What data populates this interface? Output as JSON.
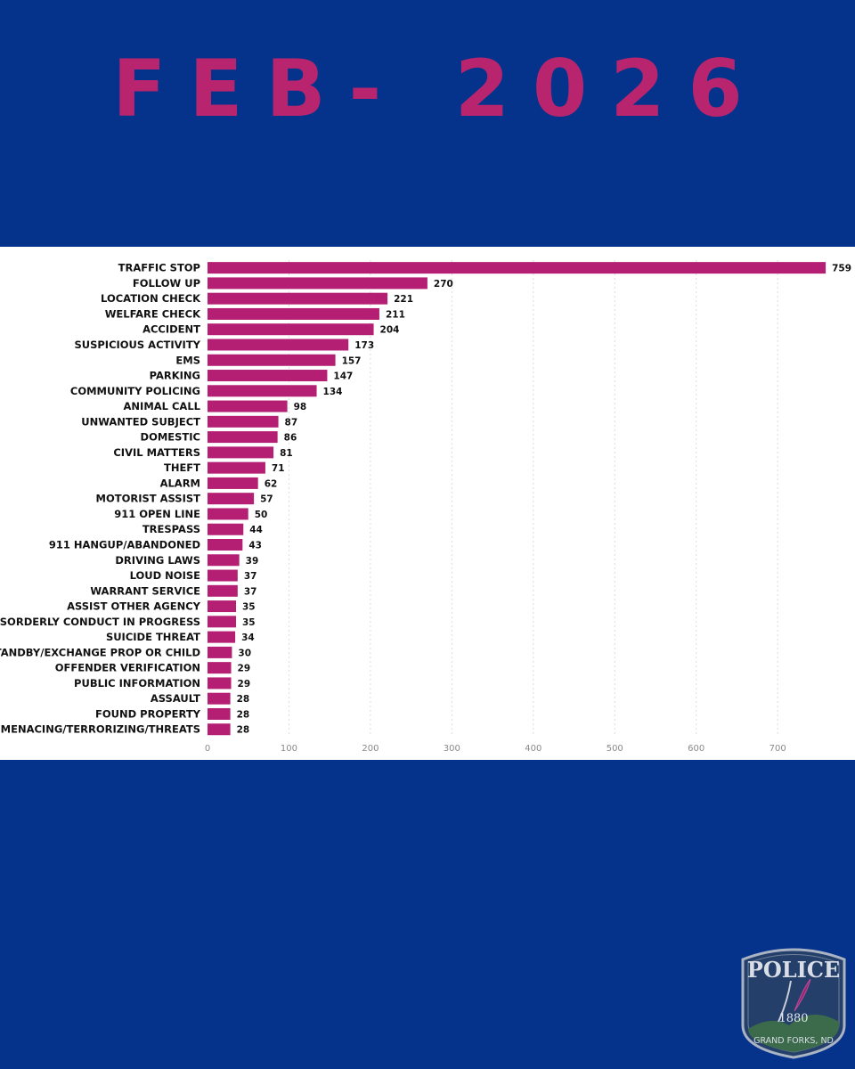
{
  "header": {
    "title": "FEB- 2026"
  },
  "colors": {
    "background": "#05338b",
    "title": "#b8256e",
    "bar": "#b41f73",
    "panel": "#ffffff"
  },
  "chart_data": {
    "type": "bar",
    "orientation": "horizontal",
    "title": "",
    "xlabel": "",
    "ylabel": "",
    "xlim": [
      0,
      760
    ],
    "xticks": [
      0,
      100,
      200,
      300,
      400,
      500,
      600,
      700
    ],
    "grid": "vertical dashed",
    "data_labels": true,
    "categories": [
      "TRAFFIC STOP",
      "FOLLOW UP",
      "LOCATION CHECK",
      "WELFARE CHECK",
      "ACCIDENT",
      "SUSPICIOUS ACTIVITY",
      "EMS",
      "PARKING",
      "COMMUNITY POLICING",
      "ANIMAL CALL",
      "UNWANTED SUBJECT",
      "DOMESTIC",
      "CIVIL MATTERS",
      "THEFT",
      "ALARM",
      "MOTORIST ASSIST",
      "911 OPEN LINE",
      "TRESPASS",
      "911 HANGUP/ABANDONED",
      "DRIVING LAWS",
      "LOUD NOISE",
      "WARRANT SERVICE",
      "ASSIST OTHER AGENCY",
      "DISORDERLY CONDUCT IN PROGRESS",
      "SUICIDE THREAT",
      "STANDBY/EXCHANGE PROP OR CHILD",
      "OFFENDER VERIFICATION",
      "PUBLIC INFORMATION",
      "ASSAULT",
      "FOUND PROPERTY",
      "MENACING/TERRORIZING/THREATS"
    ],
    "values": [
      759,
      270,
      221,
      211,
      204,
      173,
      157,
      147,
      134,
      98,
      87,
      86,
      81,
      71,
      62,
      57,
      50,
      44,
      43,
      39,
      37,
      37,
      35,
      35,
      34,
      30,
      29,
      29,
      28,
      28,
      28
    ]
  },
  "logo": {
    "text_top": "POLICE",
    "year": "1880",
    "text_bottom": "GRAND FORKS, ND"
  }
}
